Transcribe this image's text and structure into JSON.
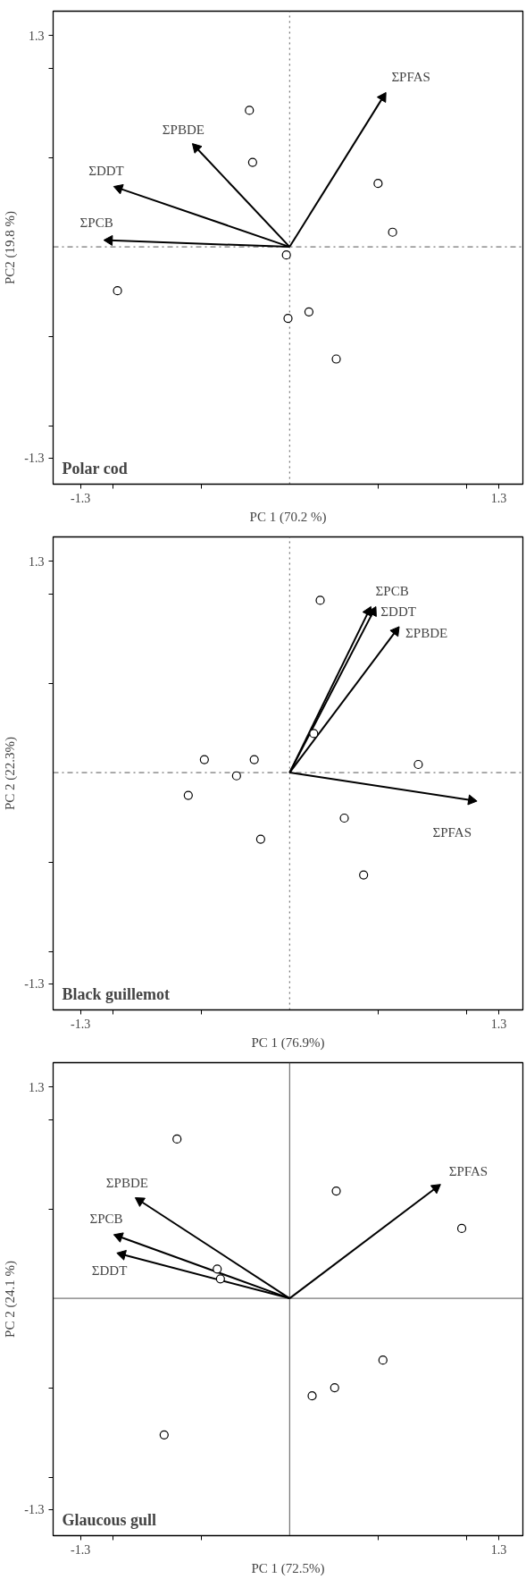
{
  "chart_data": [
    {
      "type": "scatter",
      "title": "Polar cod",
      "xlabel": "PC 1 (70.2 %)",
      "ylabel": "PC2 (19.8 %)",
      "xlim": [
        -1.47,
        1.45
      ],
      "ylim": [
        -1.46,
        1.45
      ],
      "xticks": [
        {
          "value": -1.3,
          "label": "-1.3"
        },
        {
          "value": -1.1,
          "label": null
        },
        {
          "value": -0.55,
          "label": null
        },
        {
          "value": 0.55,
          "label": null
        },
        {
          "value": 1.1,
          "label": null
        },
        {
          "value": 1.3,
          "label": "1.3"
        }
      ],
      "yticks": [
        {
          "value": -1.3,
          "label": "-1.3"
        },
        {
          "value": -1.1,
          "label": null
        },
        {
          "value": -0.55,
          "label": null
        },
        {
          "value": 0.55,
          "label": null
        },
        {
          "value": 1.1,
          "label": null
        },
        {
          "value": 1.3,
          "label": "1.3"
        }
      ],
      "grid": false,
      "marker": "circle",
      "ref_lines": [
        {
          "axis": "x",
          "value": 0,
          "line_style": "dotted"
        },
        {
          "axis": "y",
          "value": 0,
          "line_style": "dashed"
        }
      ],
      "series": [
        {
          "color": "#000000",
          "x": [
            -0.25,
            -0.23,
            0.55,
            0.64,
            -0.02,
            -1.07,
            -0.01,
            0.12,
            0.29
          ],
          "values": [
            0.84,
            0.52,
            0.39,
            0.09,
            -0.05,
            -0.27,
            -0.44,
            -0.4,
            -0.69
          ]
        },
        {
          "type": "line",
          "name": "ΣPFAS",
          "color": "#000000",
          "marker": "triangle",
          "x": [
            0,
            0.58
          ],
          "values": [
            0,
            0.92
          ]
        },
        {
          "type": "line",
          "name": "ΣPBDE",
          "color": "#000000",
          "marker": "triangle",
          "x": [
            0,
            -0.58
          ],
          "values": [
            0,
            0.61
          ]
        },
        {
          "type": "line",
          "name": "ΣDDT",
          "color": "#000000",
          "marker": "triangle",
          "x": [
            0,
            -1.06
          ],
          "values": [
            0,
            0.36
          ]
        },
        {
          "type": "line",
          "name": "ΣPCB",
          "color": "#000000",
          "marker": "triangle",
          "x": [
            0,
            -1.12
          ],
          "values": [
            0,
            0.04
          ]
        }
      ]
    },
    {
      "type": "scatter",
      "title": "Black guillemot",
      "xlabel": "PC 1 (76.9%)",
      "ylabel": "PC 2 (22.3%)",
      "xlim": [
        -1.47,
        1.45
      ],
      "ylim": [
        -1.46,
        1.45
      ],
      "xticks": [
        {
          "value": -1.3,
          "label": "-1.3"
        },
        {
          "value": -1.1,
          "label": null
        },
        {
          "value": -0.55,
          "label": null
        },
        {
          "value": 0.55,
          "label": null
        },
        {
          "value": 1.1,
          "label": null
        },
        {
          "value": 1.3,
          "label": "1.3"
        }
      ],
      "yticks": [
        {
          "value": -1.3,
          "label": "-1.3"
        },
        {
          "value": -1.1,
          "label": null
        },
        {
          "value": -0.55,
          "label": null
        },
        {
          "value": 0.55,
          "label": null
        },
        {
          "value": 1.1,
          "label": null
        },
        {
          "value": 1.3,
          "label": "1.3"
        }
      ],
      "grid": false,
      "marker": "circle",
      "ref_lines": [
        {
          "axis": "x",
          "value": 0,
          "line_style": "dotted"
        },
        {
          "axis": "y",
          "value": 0,
          "line_style": "dashed"
        }
      ],
      "series": [
        {
          "color": "#000000",
          "x": [
            0.19,
            0.15,
            -0.53,
            -0.22,
            -0.33,
            -0.63,
            0.8,
            0.34,
            -0.18,
            0.46
          ],
          "values": [
            1.06,
            0.24,
            0.08,
            0.08,
            -0.02,
            -0.14,
            0.05,
            -0.28,
            -0.41,
            -0.63
          ]
        },
        {
          "type": "line",
          "name": "ΣPCB",
          "color": "#000000",
          "marker": "triangle",
          "x": [
            0,
            0.49
          ],
          "values": [
            0,
            0.99
          ]
        },
        {
          "type": "line",
          "name": "ΣDDT",
          "color": "#000000",
          "marker": "triangle",
          "x": [
            0,
            0.52
          ],
          "values": [
            0,
            0.99
          ]
        },
        {
          "type": "line",
          "name": "ΣPBDE",
          "color": "#000000",
          "marker": "triangle",
          "x": [
            0,
            0.66
          ],
          "values": [
            0,
            0.87
          ]
        },
        {
          "type": "line",
          "name": "ΣPFAS",
          "color": "#000000",
          "marker": "triangle",
          "x": [
            0,
            1.13
          ],
          "values": [
            0,
            -0.17
          ]
        }
      ]
    },
    {
      "type": "scatter",
      "title": "Glaucous gull",
      "xlabel": "PC 1 (72.5%)",
      "ylabel": "PC 2 (24.1 %)",
      "xlim": [
        -1.47,
        1.45
      ],
      "ylim": [
        -1.46,
        1.45
      ],
      "xticks": [
        {
          "value": -1.3,
          "label": "-1.3"
        },
        {
          "value": -1.1,
          "label": null
        },
        {
          "value": -0.55,
          "label": null
        },
        {
          "value": 0.55,
          "label": null
        },
        {
          "value": 1.1,
          "label": null
        },
        {
          "value": 1.3,
          "label": "1.3"
        }
      ],
      "yticks": [
        {
          "value": -1.3,
          "label": "-1.3"
        },
        {
          "value": -1.1,
          "label": null
        },
        {
          "value": -0.55,
          "label": null
        },
        {
          "value": 0.55,
          "label": null
        },
        {
          "value": 1.1,
          "label": null
        },
        {
          "value": 1.3,
          "label": "1.3"
        }
      ],
      "grid": false,
      "marker": "circle",
      "ref_lines": [
        {
          "axis": "x",
          "value": 0,
          "line_style": "solid"
        },
        {
          "axis": "y",
          "value": 0,
          "line_style": "solid"
        }
      ],
      "series": [
        {
          "color": "#000000",
          "x": [
            -0.7,
            0.29,
            1.07,
            -0.45,
            -0.43,
            0.58,
            0.28,
            0.14,
            -0.78
          ],
          "values": [
            0.98,
            0.66,
            0.43,
            0.18,
            0.12,
            -0.38,
            -0.55,
            -0.6,
            -0.84
          ]
        },
        {
          "type": "line",
          "name": "ΣPFAS",
          "color": "#000000",
          "marker": "triangle",
          "x": [
            0,
            0.91
          ],
          "values": [
            0,
            0.68
          ]
        },
        {
          "type": "line",
          "name": "ΣPBDE",
          "color": "#000000",
          "marker": "triangle",
          "x": [
            0,
            -0.93
          ],
          "values": [
            0,
            0.6
          ]
        },
        {
          "type": "line",
          "name": "ΣPCB",
          "color": "#000000",
          "marker": "triangle",
          "x": [
            0,
            -1.06
          ],
          "values": [
            0,
            0.38
          ]
        },
        {
          "type": "line",
          "name": "ΣDDT",
          "color": "#000000",
          "marker": "triangle",
          "x": [
            0,
            -1.04
          ],
          "values": [
            0,
            0.27
          ]
        }
      ]
    }
  ]
}
